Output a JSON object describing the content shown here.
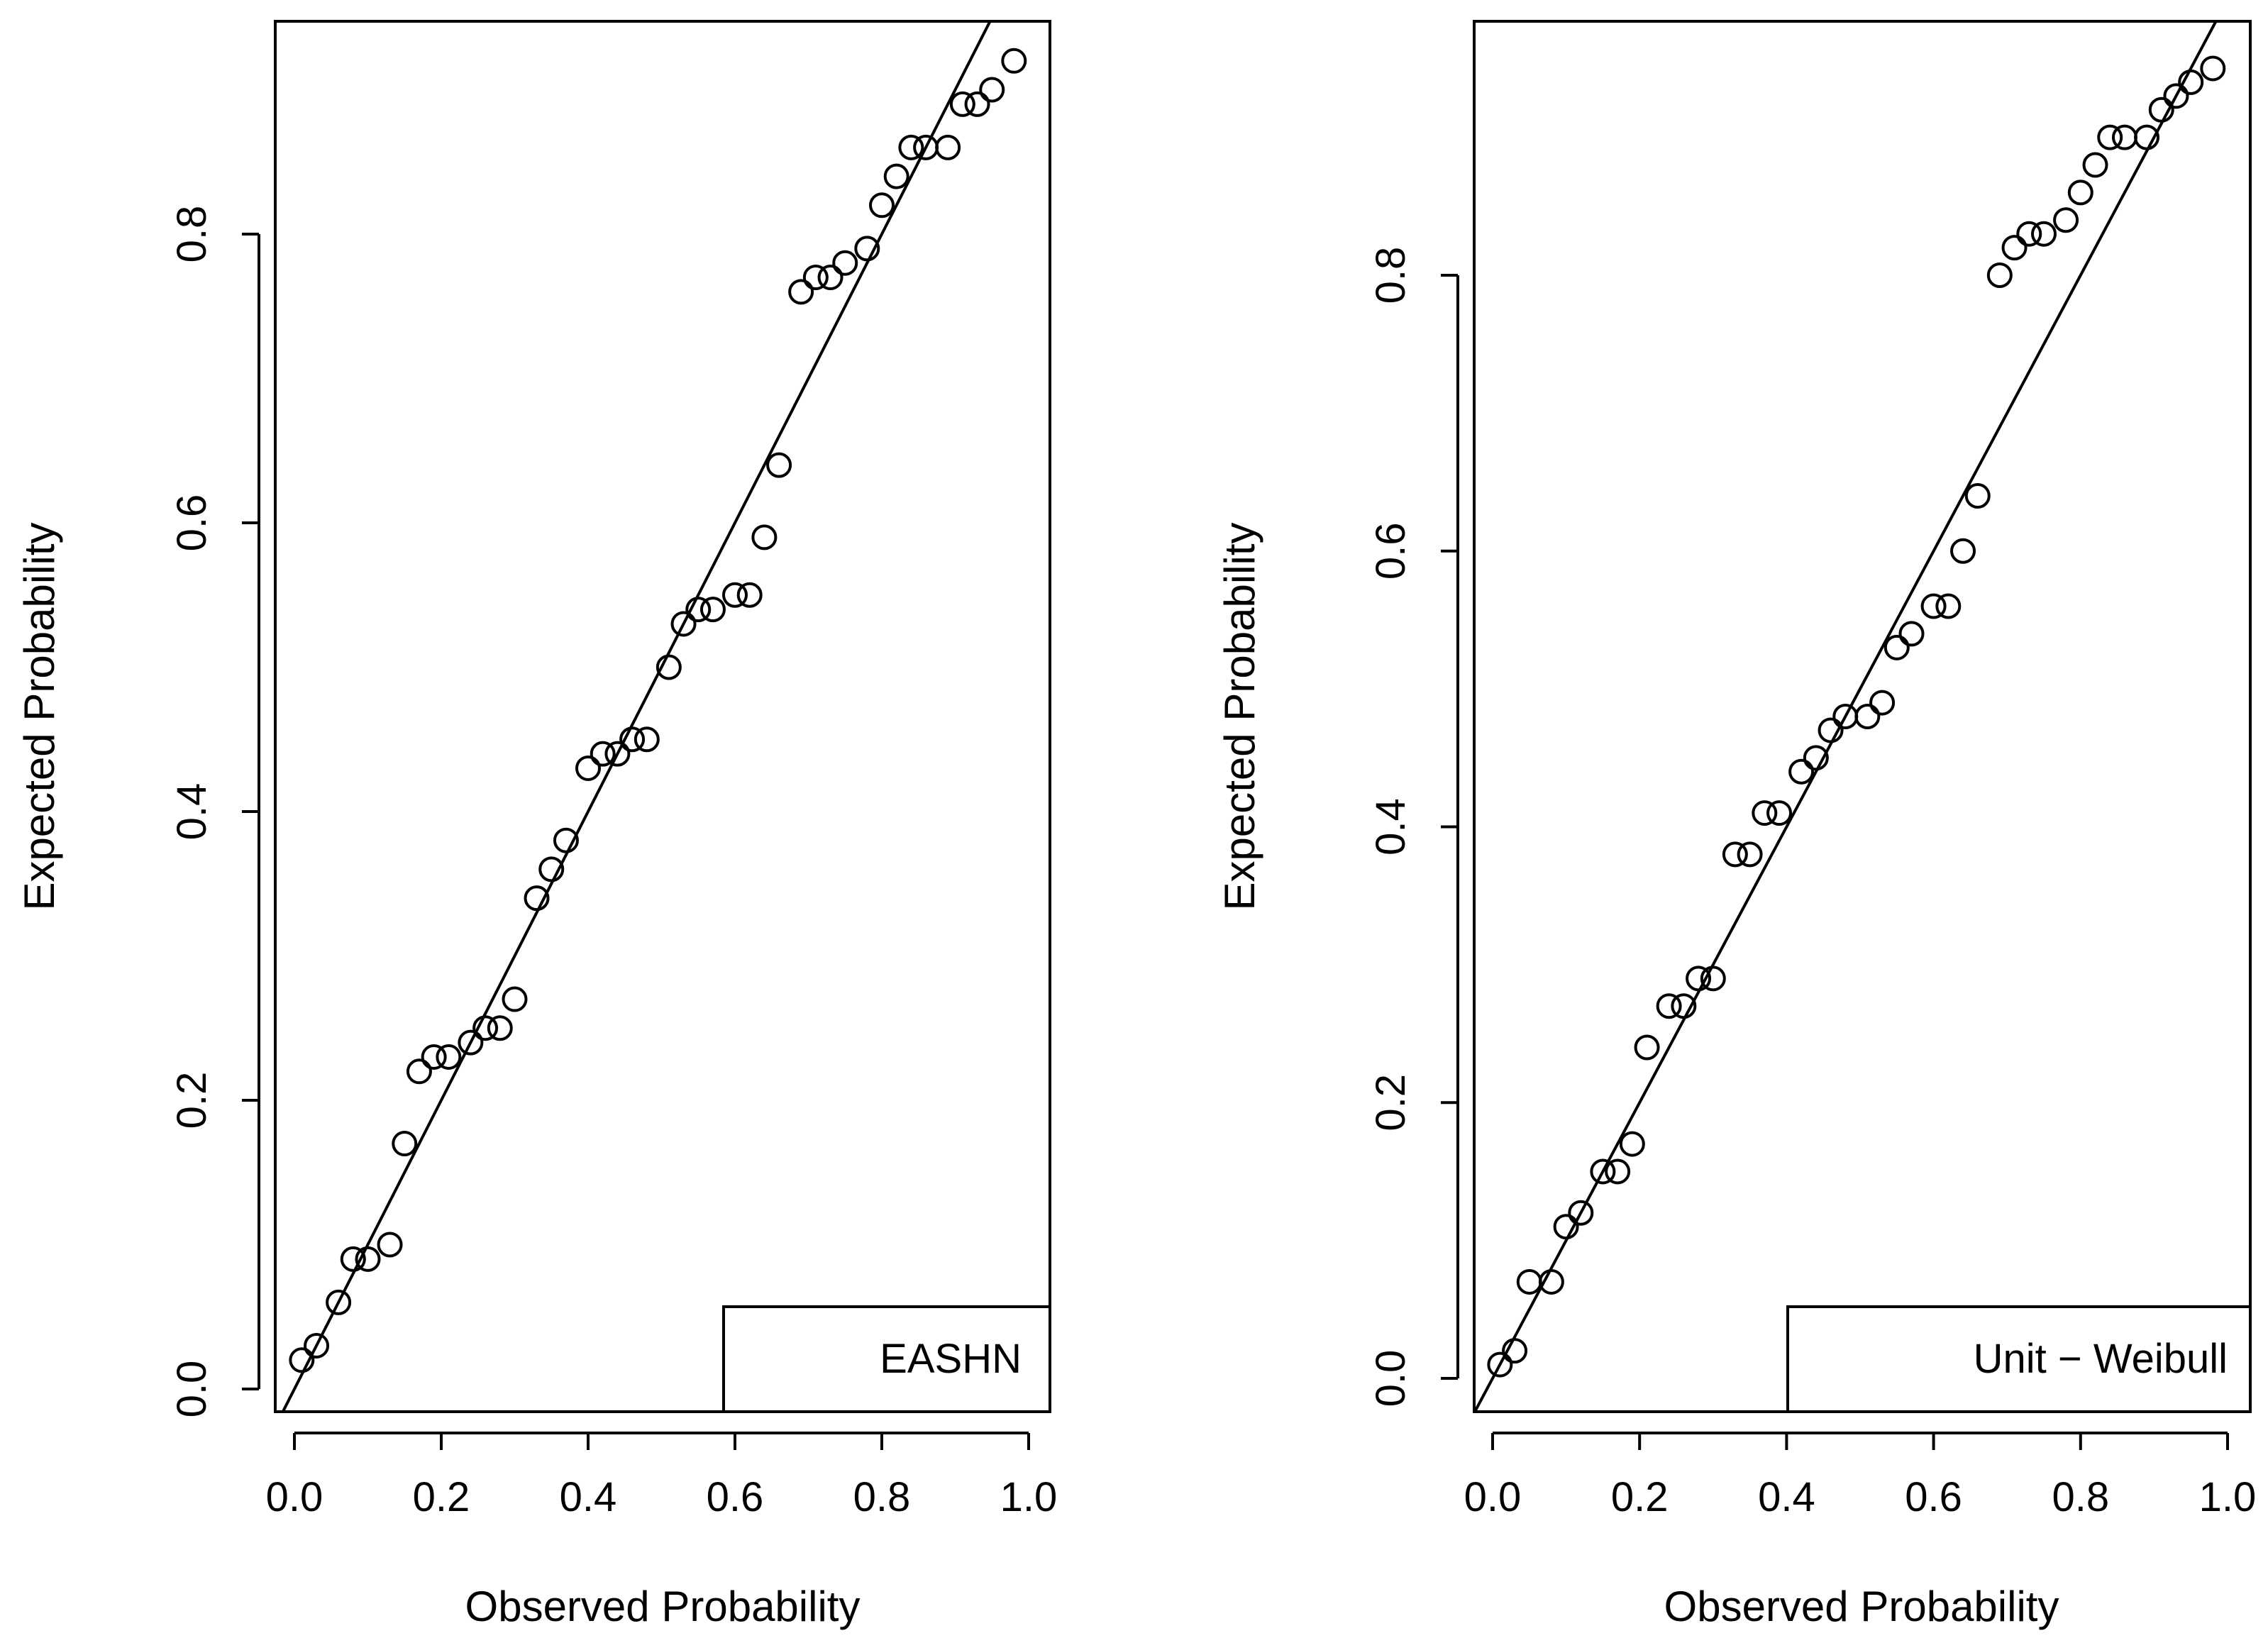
{
  "chart_data": [
    {
      "type": "scatter",
      "xlabel": "Observed Probability",
      "ylabel": "Expected Probability",
      "xlim": [
        0.0,
        1.0
      ],
      "ylim": [
        0.0,
        0.93
      ],
      "xticks": [
        "0.0",
        "0.2",
        "0.4",
        "0.6",
        "0.8",
        "1.0"
      ],
      "yticks": [
        "0.0",
        "0.2",
        "0.4",
        "0.6",
        "0.8"
      ],
      "legend": {
        "label": "EASHN",
        "position": "bottom-right"
      },
      "reference_line": {
        "from": [
          0.0,
          0.0
        ],
        "to": [
          1.0,
          1.0
        ]
      },
      "series": [
        {
          "x": [
            0.01,
            0.03,
            0.06,
            0.08,
            0.1,
            0.13,
            0.15,
            0.17,
            0.19,
            0.21,
            0.24,
            0.26,
            0.28,
            0.3,
            0.33,
            0.35,
            0.37,
            0.4,
            0.42,
            0.44,
            0.46,
            0.48,
            0.51,
            0.53,
            0.55,
            0.57,
            0.6,
            0.62,
            0.64,
            0.66,
            0.69,
            0.71,
            0.73,
            0.75,
            0.78,
            0.8,
            0.82,
            0.84,
            0.86,
            0.89,
            0.91,
            0.93,
            0.95,
            0.98
          ],
          "y": [
            0.02,
            0.03,
            0.06,
            0.09,
            0.09,
            0.1,
            0.17,
            0.22,
            0.23,
            0.23,
            0.24,
            0.25,
            0.25,
            0.27,
            0.34,
            0.36,
            0.38,
            0.43,
            0.44,
            0.44,
            0.45,
            0.45,
            0.5,
            0.53,
            0.54,
            0.54,
            0.55,
            0.55,
            0.59,
            0.64,
            0.76,
            0.77,
            0.77,
            0.78,
            0.79,
            0.82,
            0.84,
            0.86,
            0.86,
            0.86,
            0.89,
            0.89,
            0.9,
            0.92
          ]
        }
      ]
    },
    {
      "type": "scatter",
      "xlabel": "Observed Probability",
      "ylabel": "Expected Probability",
      "xlim": [
        0.0,
        1.0
      ],
      "ylim": [
        0.0,
        0.98
      ],
      "xticks": [
        "0.0",
        "0.2",
        "0.4",
        "0.6",
        "0.8",
        "1.0"
      ],
      "yticks": [
        "0.0",
        "0.2",
        "0.4",
        "0.6",
        "0.8"
      ],
      "legend": {
        "label": "Unit − Weibull",
        "position": "bottom-right"
      },
      "reference_line": {
        "from": [
          0.0,
          0.0
        ],
        "to": [
          1.0,
          1.0
        ]
      },
      "series": [
        {
          "x": [
            0.01,
            0.03,
            0.05,
            0.08,
            0.1,
            0.12,
            0.15,
            0.17,
            0.19,
            0.21,
            0.24,
            0.26,
            0.28,
            0.3,
            0.33,
            0.35,
            0.37,
            0.39,
            0.42,
            0.44,
            0.46,
            0.48,
            0.51,
            0.53,
            0.55,
            0.57,
            0.6,
            0.62,
            0.64,
            0.66,
            0.69,
            0.71,
            0.73,
            0.75,
            0.78,
            0.8,
            0.82,
            0.84,
            0.86,
            0.89,
            0.91,
            0.93,
            0.95,
            0.98
          ],
          "y": [
            0.01,
            0.02,
            0.07,
            0.07,
            0.11,
            0.12,
            0.15,
            0.15,
            0.17,
            0.24,
            0.27,
            0.27,
            0.29,
            0.29,
            0.38,
            0.38,
            0.41,
            0.41,
            0.44,
            0.45,
            0.47,
            0.48,
            0.48,
            0.49,
            0.53,
            0.54,
            0.56,
            0.56,
            0.6,
            0.64,
            0.8,
            0.82,
            0.83,
            0.83,
            0.84,
            0.86,
            0.88,
            0.9,
            0.9,
            0.9,
            0.92,
            0.93,
            0.94,
            0.95
          ]
        }
      ]
    }
  ]
}
